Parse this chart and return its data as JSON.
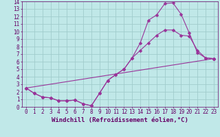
{
  "xlabel": "Windchill (Refroidissement éolien,°C)",
  "background_color": "#c0e8e8",
  "grid_color": "#a0cccc",
  "line_color": "#993399",
  "xlim": [
    -0.5,
    23.5
  ],
  "ylim": [
    0,
    14
  ],
  "xticks": [
    0,
    1,
    2,
    3,
    4,
    5,
    6,
    7,
    8,
    9,
    10,
    11,
    12,
    13,
    14,
    15,
    16,
    17,
    18,
    19,
    20,
    21,
    22,
    23
  ],
  "yticks": [
    0,
    1,
    2,
    3,
    4,
    5,
    6,
    7,
    8,
    9,
    10,
    11,
    12,
    13,
    14
  ],
  "line1_x": [
    0,
    1,
    2,
    3,
    4,
    5,
    6,
    7,
    8,
    9,
    10,
    11,
    12,
    13,
    14,
    15,
    16,
    17,
    18,
    19,
    20,
    21,
    22,
    23
  ],
  "line1_y": [
    2.5,
    1.8,
    1.3,
    1.2,
    0.8,
    0.8,
    0.9,
    0.4,
    0.15,
    1.8,
    3.5,
    4.3,
    5.0,
    6.5,
    8.5,
    11.5,
    12.2,
    13.7,
    13.8,
    12.3,
    9.8,
    7.2,
    6.5,
    6.4
  ],
  "line2_x": [
    0,
    1,
    2,
    3,
    4,
    5,
    6,
    7,
    8,
    9,
    10,
    11,
    12,
    13,
    14,
    15,
    16,
    17,
    18,
    19,
    20,
    21,
    22,
    23
  ],
  "line2_y": [
    2.5,
    1.8,
    1.3,
    1.2,
    0.8,
    0.8,
    0.9,
    0.4,
    0.15,
    1.8,
    3.5,
    4.3,
    5.0,
    6.5,
    7.5,
    8.5,
    9.5,
    10.2,
    10.2,
    9.5,
    9.4,
    7.5,
    6.5,
    6.4
  ],
  "line3_x": [
    0,
    23
  ],
  "line3_y": [
    2.5,
    6.4
  ],
  "font_color": "#660066",
  "tick_fontsize": 5.5,
  "label_fontsize": 6.5
}
